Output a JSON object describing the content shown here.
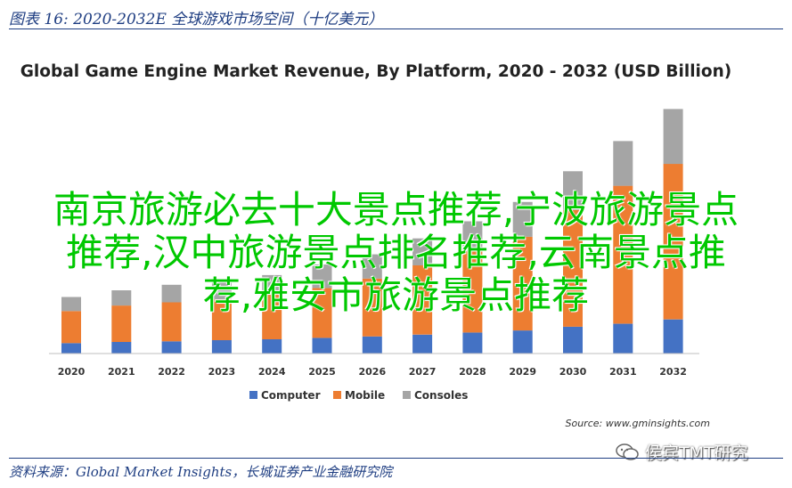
{
  "header": {
    "figure_caption": "图表 16:  2020-2032E 全球游戏市场空间（十亿美元）"
  },
  "chart_data": {
    "type": "bar",
    "stacked": true,
    "title": "Global Game Engine Market Revenue, By Platform, 2020 - 2032 (USD Billion)",
    "categories": [
      "2020",
      "2021",
      "2022",
      "2023",
      "2024",
      "2025",
      "2026",
      "2027",
      "2028",
      "2029",
      "2030",
      "2031",
      "2032"
    ],
    "series": [
      {
        "name": "Computer",
        "color": "#4472c4",
        "values": [
          4.5,
          5.0,
          5.3,
          5.8,
          6.2,
          6.8,
          7.4,
          8.2,
          9.1,
          10.0,
          11.6,
          12.9,
          14.8
        ]
      },
      {
        "name": "Mobile",
        "color": "#ed7d31",
        "values": [
          13.9,
          15.8,
          16.9,
          17.7,
          19.4,
          21.6,
          25.1,
          30.0,
          35.1,
          40.6,
          50.6,
          59.8,
          67.4
        ]
      },
      {
        "name": "Consoles",
        "color": "#a5a5a5",
        "values": [
          6.1,
          6.6,
          7.6,
          7.7,
          8.4,
          10.2,
          10.5,
          11.7,
          13.1,
          15.1,
          16.8,
          19.4,
          23.8
        ]
      }
    ],
    "ylim": [
      0,
      110
    ],
    "grid": false,
    "legend_position": "bottom",
    "source": "Source: www.gminsights.com"
  },
  "overlay_text": [
    "南京旅游必去十大景点推荐,宁波旅游景点",
    "推荐,汉中旅游景点排名推荐,云南景点推",
    "荐,雅安市旅游景点推荐"
  ],
  "watermark": {
    "text": "侯宾TMT研究",
    "icon": "wechat-icon"
  },
  "footer": {
    "source_note": "资料来源：Global Market Insights，长城证券产业金融研究院"
  }
}
